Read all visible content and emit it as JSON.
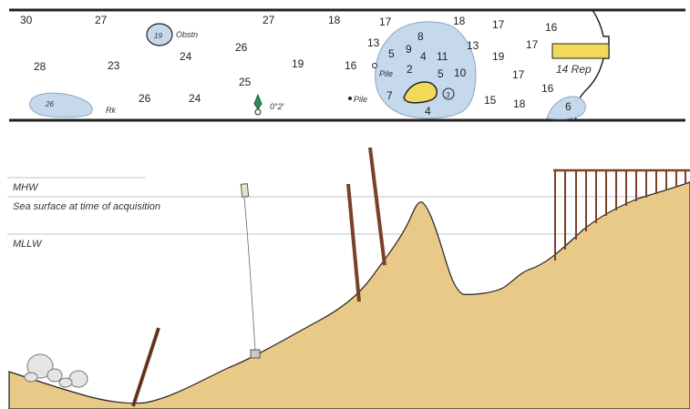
{
  "chart_map": {
    "soundings": [
      "30",
      "27",
      "27",
      "18",
      "17",
      "18",
      "17",
      "16",
      "28",
      "23",
      "24",
      "26",
      "19",
      "16",
      "13",
      "8",
      "13",
      "19",
      "17",
      "5",
      "9",
      "4",
      "11",
      "2",
      "5",
      "10",
      "17",
      "14 Rep",
      "26",
      "24",
      "25",
      "7",
      "4",
      "15",
      "18",
      "16",
      "6",
      "19",
      "26",
      "3"
    ],
    "annotations": {
      "obstn": "Obstn",
      "rk": "Rk",
      "pile1": "Pile",
      "pile2": "Pile",
      "wreck_depth": "0°2′"
    }
  },
  "profile": {
    "mhw_label": "MHW",
    "sea_surface_label": "Sea surface at time of acquisition",
    "mllw_label": "MLLW"
  },
  "colors": {
    "land": "#e8c987",
    "shoal": "#c5d8ec",
    "shoal_stroke": "#8aa7c7",
    "rock": "#f2d95a",
    "piling": "#7a4028",
    "water_line": "#b9c7d6",
    "buoy": "#2e8b57"
  }
}
